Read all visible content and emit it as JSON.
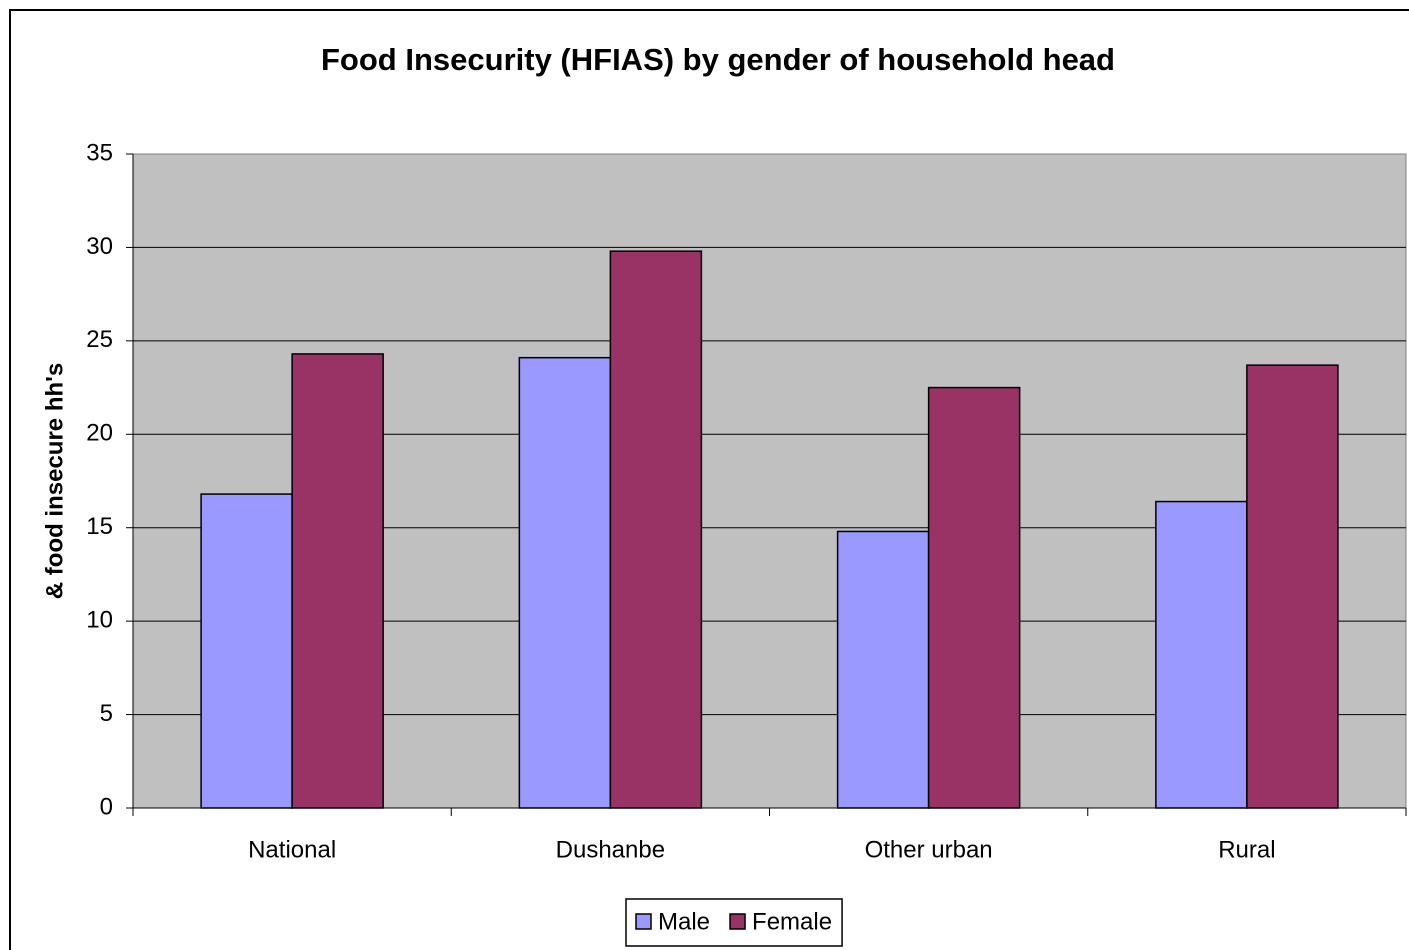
{
  "chart_data": {
    "type": "bar",
    "title": "Food Insecurity (HFIAS) by gender of household head",
    "y_label": "& food insecure hh's",
    "categories": [
      "National",
      "Dushanbe",
      "Other urban",
      "Rural"
    ],
    "series": [
      {
        "name": "Male",
        "color": "#9999ff",
        "values": [
          16.8,
          24.1,
          14.8,
          16.4
        ]
      },
      {
        "name": "Female",
        "color": "#993366",
        "values": [
          24.3,
          29.8,
          22.5,
          23.7
        ]
      }
    ],
    "ylim": [
      0,
      35
    ],
    "yticks": [
      0,
      5,
      10,
      15,
      20,
      25,
      30,
      35
    ],
    "grid": true,
    "legend": "bottom"
  }
}
